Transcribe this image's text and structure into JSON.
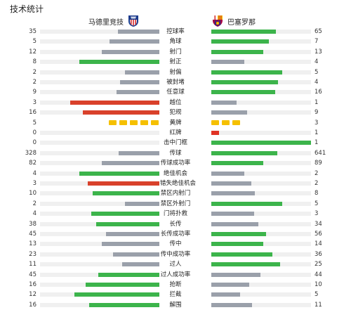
{
  "title": "技术统计",
  "teams": {
    "home": {
      "name": "马德里竞技",
      "crest_icon": "atletico-crest-icon"
    },
    "away": {
      "name": "巴塞罗那",
      "crest_icon": "barcelona-crest-icon"
    }
  },
  "colors": {
    "winner": "#3cb44b",
    "neutral": "#9aa0aa",
    "loser_red": "#d9412b",
    "track": "#f0f0f0",
    "yellow_card": "#f5c000",
    "red_card": "#e03325"
  },
  "stats": [
    {
      "label": "控球率",
      "home": "35",
      "away": "65"
    },
    {
      "label": "角球",
      "home": "5",
      "away": "7"
    },
    {
      "label": "射门",
      "home": "12",
      "away": "13"
    },
    {
      "label": "射正",
      "home": "8",
      "away": "4"
    },
    {
      "label": "射偏",
      "home": "2",
      "away": "5"
    },
    {
      "label": "被封堵",
      "home": "2",
      "away": "4"
    },
    {
      "label": "任意球",
      "home": "9",
      "away": "16"
    },
    {
      "label": "越位",
      "home": "3",
      "away": "1"
    },
    {
      "label": "犯规",
      "home": "16",
      "away": "9"
    },
    {
      "label": "黄牌",
      "home": "5",
      "away": "3"
    },
    {
      "label": "红牌",
      "home": "0",
      "away": "1"
    },
    {
      "label": "击中门框",
      "home": "0",
      "away": "1"
    },
    {
      "label": "传球",
      "home": "328",
      "away": "641"
    },
    {
      "label": "传球成功率",
      "home": "82",
      "away": "89"
    },
    {
      "label": "绝佳机会",
      "home": "4",
      "away": "2"
    },
    {
      "label": "错失绝佳机会",
      "home": "3",
      "away": "2"
    },
    {
      "label": "禁区内射门",
      "home": "10",
      "away": "8"
    },
    {
      "label": "禁区外射门",
      "home": "2",
      "away": "5"
    },
    {
      "label": "门将扑救",
      "home": "4",
      "away": "3"
    },
    {
      "label": "长传",
      "home": "38",
      "away": "34"
    },
    {
      "label": "长传成功率",
      "home": "45",
      "away": "56"
    },
    {
      "label": "传中",
      "home": "13",
      "away": "14"
    },
    {
      "label": "传中成功率",
      "home": "23",
      "away": "36"
    },
    {
      "label": "过人",
      "home": "11",
      "away": "25"
    },
    {
      "label": "过人成功率",
      "home": "45",
      "away": "44"
    },
    {
      "label": "抢断",
      "home": "16",
      "away": "10"
    },
    {
      "label": "拦截",
      "home": "12",
      "away": "5"
    },
    {
      "label": "解围",
      "home": "16",
      "away": "11"
    }
  ],
  "bars": [
    {
      "home": 0.35,
      "away": 0.65,
      "home_color": "neutral",
      "away_color": "winner"
    },
    {
      "home": 0.42,
      "away": 0.58,
      "home_color": "neutral",
      "away_color": "winner"
    },
    {
      "home": 0.48,
      "away": 0.52,
      "home_color": "neutral",
      "away_color": "winner"
    },
    {
      "home": 0.67,
      "away": 0.33,
      "home_color": "winner",
      "away_color": "neutral"
    },
    {
      "home": 0.29,
      "away": 0.71,
      "home_color": "neutral",
      "away_color": "winner"
    },
    {
      "home": 0.33,
      "away": 0.67,
      "home_color": "neutral",
      "away_color": "winner"
    },
    {
      "home": 0.36,
      "away": 0.64,
      "home_color": "neutral",
      "away_color": "winner"
    },
    {
      "home": 0.75,
      "away": 0.25,
      "home_color": "loser_red",
      "away_color": "neutral"
    },
    {
      "home": 0.64,
      "away": 0.36,
      "home_color": "loser_red",
      "away_color": "neutral"
    },
    null,
    {
      "home": 0.0,
      "away": 0.08,
      "home_color": "neutral",
      "away_color": "red_card"
    },
    {
      "home": 0.0,
      "away": 1.0,
      "home_color": "neutral",
      "away_color": "winner"
    },
    {
      "home": 0.34,
      "away": 0.66,
      "home_color": "neutral",
      "away_color": "winner"
    },
    {
      "home": 0.48,
      "away": 0.52,
      "home_color": "neutral",
      "away_color": "winner"
    },
    {
      "home": 0.67,
      "away": 0.33,
      "home_color": "winner",
      "away_color": "neutral"
    },
    {
      "home": 0.6,
      "away": 0.4,
      "home_color": "loser_red",
      "away_color": "neutral"
    },
    {
      "home": 0.56,
      "away": 0.44,
      "home_color": "winner",
      "away_color": "neutral"
    },
    {
      "home": 0.29,
      "away": 0.71,
      "home_color": "neutral",
      "away_color": "winner"
    },
    {
      "home": 0.57,
      "away": 0.43,
      "home_color": "winner",
      "away_color": "neutral"
    },
    {
      "home": 0.53,
      "away": 0.47,
      "home_color": "winner",
      "away_color": "neutral"
    },
    {
      "home": 0.45,
      "away": 0.55,
      "home_color": "neutral",
      "away_color": "winner"
    },
    {
      "home": 0.48,
      "away": 0.52,
      "home_color": "neutral",
      "away_color": "winner"
    },
    {
      "home": 0.39,
      "away": 0.61,
      "home_color": "neutral",
      "away_color": "winner"
    },
    {
      "home": 0.31,
      "away": 0.69,
      "home_color": "neutral",
      "away_color": "winner"
    },
    {
      "home": 0.51,
      "away": 0.49,
      "home_color": "winner",
      "away_color": "neutral"
    },
    {
      "home": 0.62,
      "away": 0.38,
      "home_color": "winner",
      "away_color": "neutral"
    },
    {
      "home": 0.71,
      "away": 0.29,
      "home_color": "winner",
      "away_color": "neutral"
    },
    {
      "home": 0.59,
      "away": 0.41,
      "home_color": "winner",
      "away_color": "neutral"
    }
  ]
}
